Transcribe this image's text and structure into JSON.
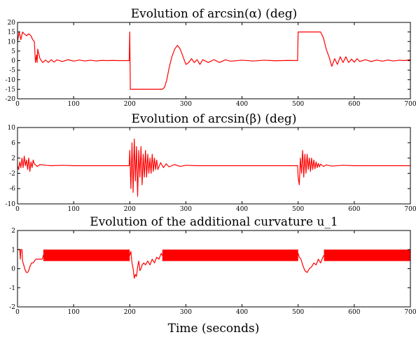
{
  "chart_data": [
    {
      "type": "line",
      "title": "Evolution of arcsin(α) (deg)",
      "xlim": [
        0,
        700
      ],
      "ylim": [
        -20,
        20
      ],
      "xticks": [
        0,
        100,
        200,
        300,
        400,
        500,
        600,
        700
      ],
      "yticks": [
        -20,
        -15,
        -10,
        -5,
        0,
        5,
        10,
        15,
        20
      ],
      "grid": false,
      "series": [
        {
          "color": "#ff0000",
          "x": [
            0,
            3,
            6,
            9,
            12,
            16,
            20,
            24,
            27,
            30,
            32,
            34,
            35,
            36,
            40,
            45,
            50,
            55,
            60,
            65,
            70,
            80,
            90,
            100,
            110,
            120,
            130,
            140,
            150,
            160,
            170,
            180,
            190,
            199,
            200,
            201,
            210,
            230,
            250,
            258,
            262,
            266,
            270,
            275,
            280,
            285,
            290,
            295,
            300,
            305,
            310,
            315,
            320,
            325,
            330,
            340,
            350,
            360,
            370,
            380,
            400,
            420,
            440,
            460,
            480,
            499,
            500,
            501,
            510,
            530,
            540,
            545,
            550,
            555,
            560,
            565,
            570,
            575,
            580,
            585,
            590,
            595,
            600,
            605,
            610,
            620,
            630,
            640,
            650,
            660,
            670,
            680,
            690,
            700
          ],
          "y": [
            10,
            15,
            11,
            15,
            14,
            13,
            14,
            13,
            11,
            10,
            -1,
            3,
            -1,
            6,
            1,
            -1,
            0.3,
            -1,
            0.5,
            -0.8,
            0.4,
            -0.5,
            0.5,
            -0.3,
            0.3,
            -0.2,
            0.2,
            -0.2,
            0.1,
            0,
            0.1,
            0,
            0,
            0,
            15,
            -15,
            -15,
            -15,
            -15,
            -15,
            -14,
            -10,
            -4,
            2,
            6,
            8,
            6,
            2,
            -2,
            -1,
            1,
            -1,
            0.5,
            -2,
            0.5,
            -1,
            0.5,
            -1,
            0.4,
            -0.3,
            0.2,
            -0.2,
            0.2,
            -0.1,
            0.1,
            0,
            15,
            15,
            15,
            15,
            15,
            12,
            6,
            2,
            -3,
            1,
            -2,
            2,
            -1,
            2,
            -1,
            0.8,
            -0.8,
            1,
            -0.5,
            0.5,
            -0.5,
            0.3,
            -0.3,
            0.3,
            -0.2,
            0.2,
            0,
            0.5
          ]
        }
      ]
    },
    {
      "type": "line",
      "title": "Evolution of arcsin(β) (deg)",
      "xlim": [
        0,
        700
      ],
      "ylim": [
        -10,
        10
      ],
      "xticks": [
        0,
        100,
        200,
        300,
        400,
        500,
        600,
        700
      ],
      "yticks": [
        -10,
        -6,
        -2,
        2,
        6,
        10
      ],
      "grid": false,
      "series": [
        {
          "color": "#ff0000",
          "x": [
            0,
            2,
            4,
            6,
            8,
            10,
            12,
            14,
            16,
            18,
            20,
            22,
            24,
            26,
            28,
            30,
            35,
            40,
            50,
            60,
            80,
            100,
            150,
            199,
            200,
            202,
            204,
            206,
            208,
            210,
            212,
            214,
            216,
            218,
            220,
            222,
            224,
            226,
            228,
            230,
            232,
            234,
            236,
            238,
            240,
            242,
            244,
            246,
            248,
            250,
            255,
            260,
            265,
            270,
            280,
            290,
            300,
            320,
            350,
            400,
            450,
            499,
            500,
            502,
            504,
            506,
            508,
            510,
            512,
            514,
            516,
            518,
            520,
            522,
            524,
            526,
            528,
            530,
            532,
            534,
            536,
            538,
            540,
            545,
            550,
            560,
            580,
            600,
            650,
            700
          ],
          "y": [
            0,
            -1,
            1,
            -0.5,
            2,
            -0.5,
            2.5,
            0,
            1.5,
            -1,
            2,
            -1.5,
            1,
            -0.5,
            1.5,
            0.5,
            -0.2,
            0.3,
            0.1,
            0,
            0.1,
            0,
            0,
            0,
            4,
            -6,
            6,
            -7,
            7,
            -4,
            5,
            -8,
            4,
            -3,
            5,
            -5,
            3,
            -3,
            4,
            -3,
            3,
            -2,
            2,
            -2,
            3,
            -1.5,
            2,
            -1,
            1.5,
            -1,
            0.8,
            -0.5,
            0.5,
            -0.3,
            0.3,
            -0.2,
            0.1,
            0,
            0,
            0,
            0,
            0,
            -3,
            -5,
            2,
            -2,
            4,
            -3,
            3,
            -2,
            3,
            -1,
            2,
            -1.5,
            2,
            -1,
            1.5,
            -0.8,
            1,
            -0.5,
            0.6,
            -0.3,
            0.4,
            -0.2,
            0.2,
            -0.1,
            0.1,
            0,
            0,
            0
          ]
        }
      ]
    },
    {
      "type": "line",
      "title": "Evolution of the additional curvature u_1",
      "xlabel": "Time (seconds)",
      "xlim": [
        0,
        700
      ],
      "ylim": [
        -2,
        2
      ],
      "xticks": [
        0,
        100,
        200,
        300,
        400,
        500,
        600,
        700
      ],
      "yticks": [
        -2,
        -1,
        0,
        1,
        2
      ],
      "grid": false,
      "series": [
        {
          "color": "#ff0000",
          "x": [
            0,
            2,
            4,
            5,
            6,
            8,
            9,
            10,
            12,
            14,
            16,
            18,
            20,
            22,
            25,
            28,
            30,
            33,
            36,
            40,
            44,
            46,
            200,
            202,
            204,
            206,
            208,
            210,
            212,
            214,
            216,
            218,
            220,
            222,
            225,
            228,
            232,
            236,
            240,
            244,
            248,
            252,
            256,
            258,
            500,
            502,
            505,
            508,
            512,
            516,
            520,
            524,
            528,
            532,
            536,
            540,
            544,
            546,
            700
          ],
          "y": [
            1,
            1,
            1,
            0.5,
            1,
            1,
            0.4,
            0.3,
            0.1,
            -0.1,
            -0.2,
            -0.2,
            -0.1,
            0.1,
            0.3,
            0.3,
            0.4,
            0.5,
            0.5,
            0.5,
            0.5,
            0.7,
            0.7,
            0.9,
            0.3,
            0,
            -0.5,
            -0.3,
            -0.4,
            0.1,
            0.4,
            -0.1,
            0,
            0.2,
            0.3,
            0.2,
            0.4,
            0.2,
            0.5,
            0.3,
            0.6,
            0.5,
            0.8,
            0.7,
            0.8,
            0.6,
            0.5,
            0.2,
            -0.1,
            -0.2,
            0,
            0.1,
            0.3,
            0.2,
            0.5,
            0.3,
            0.6,
            0.7,
            0.7
          ],
          "band": [
            [
              46,
              200,
              0.4,
              1
            ],
            [
              258,
              500,
              0.4,
              1
            ],
            [
              546,
              700,
              0.4,
              1
            ]
          ]
        }
      ]
    }
  ]
}
